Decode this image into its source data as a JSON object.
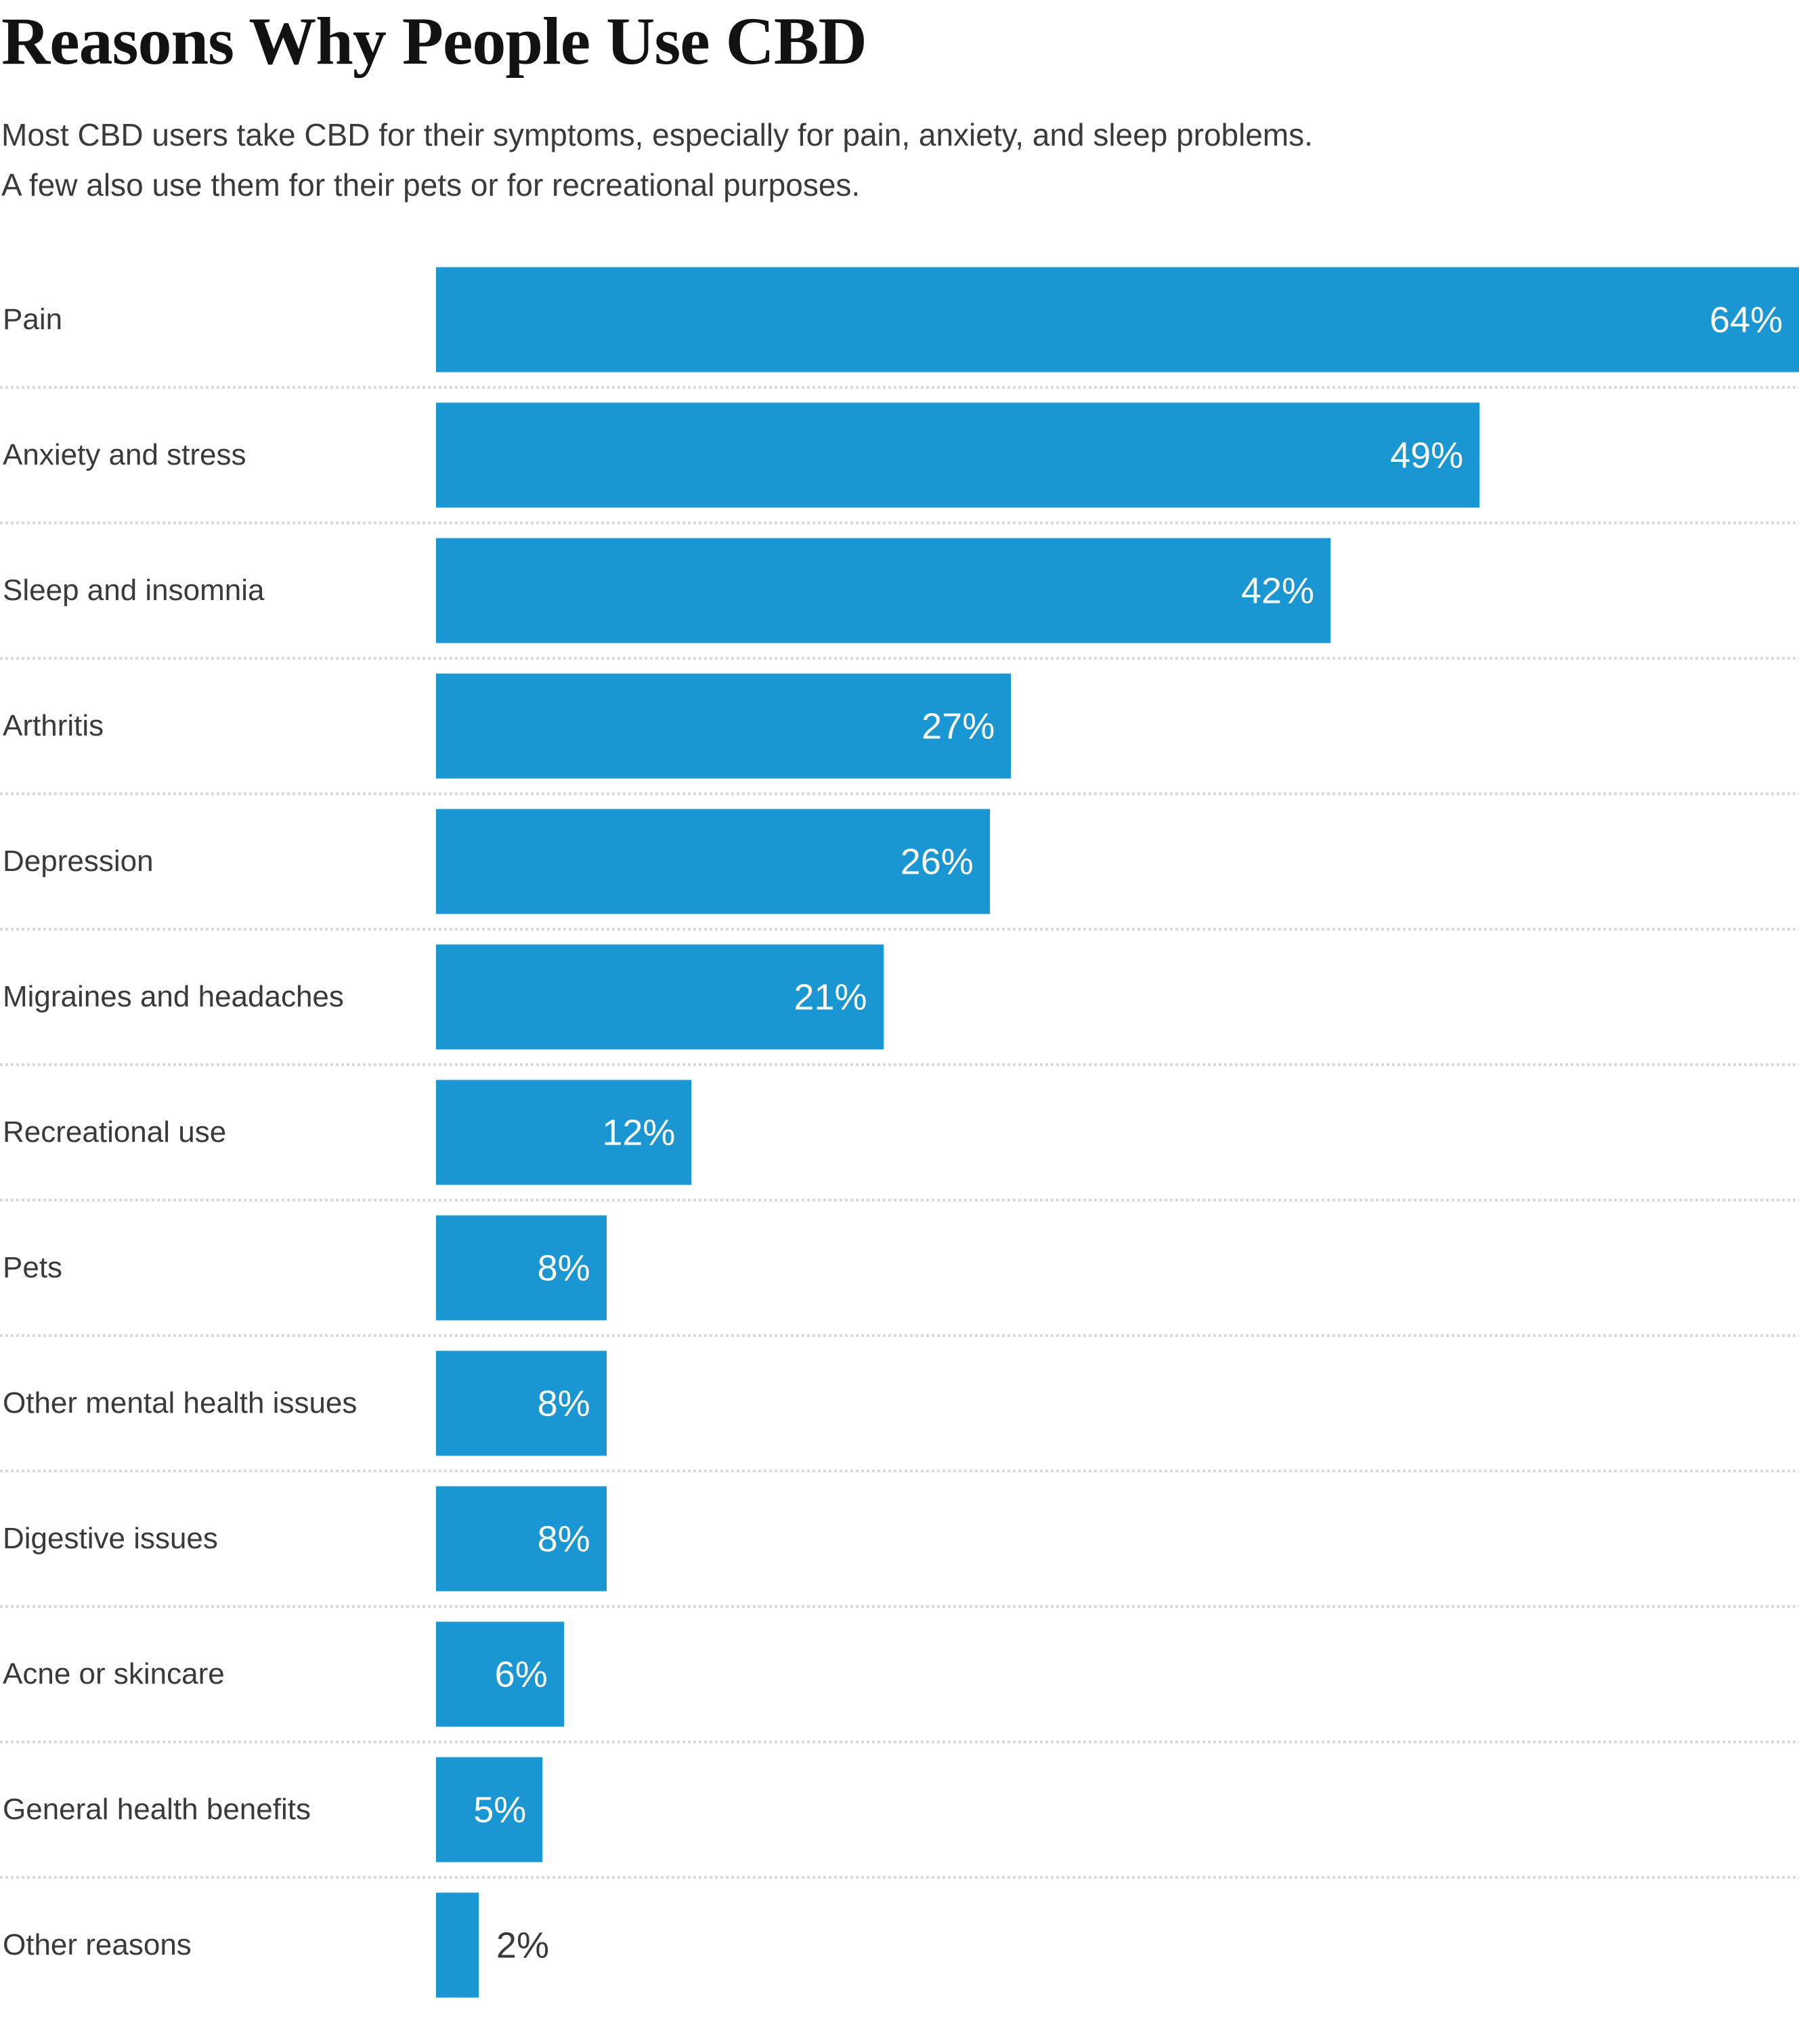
{
  "header": {
    "title": "Reasons Why People Use CBD",
    "subtitle_lines": [
      "Most CBD users take CBD for their symptoms, especially for pain, anxiety, and sleep problems.",
      "A few also use them for their pets or for recreational purposes."
    ]
  },
  "chart_data": {
    "type": "bar",
    "orientation": "horizontal",
    "title": "Reasons Why People Use CBD",
    "categories": [
      "Pain",
      "Anxiety and stress",
      "Sleep and insomnia",
      "Arthritis",
      "Depression",
      "Migraines and headaches",
      "Recreational use",
      "Pets",
      "Other mental health issues",
      "Digestive issues",
      "Acne or skincare",
      "General health benefits",
      "Other reasons"
    ],
    "values": [
      64,
      49,
      42,
      27,
      26,
      21,
      12,
      8,
      8,
      8,
      6,
      5,
      2
    ],
    "value_labels": [
      "64%",
      "49%",
      "42%",
      "27%",
      "26%",
      "21%",
      "12%",
      "8%",
      "8%",
      "8%",
      "6%",
      "5%",
      "2%"
    ],
    "xlabel": "",
    "ylabel": "",
    "xlim": [
      0,
      64
    ],
    "grid": false,
    "legend": "none",
    "colors": {
      "bar": "#1a96d2",
      "value_label_inside": "#ffffff",
      "value_label_outside": "#3a3a3a",
      "category_label": "#3a3a3a",
      "separator": "#dadada",
      "title": "#121212"
    },
    "layout": {
      "value_label_outside_below": 3
    }
  }
}
